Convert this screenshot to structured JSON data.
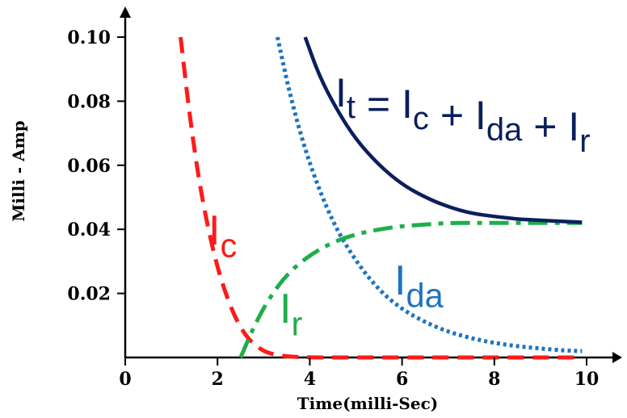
{
  "chart_data": {
    "type": "line",
    "xlabel": "Time(milli-Sec)",
    "ylabel": "Milli - Amp",
    "xlim": [
      0,
      10
    ],
    "ylim": [
      0,
      0.1
    ],
    "x_ticks": [
      "0",
      "2",
      "4",
      "6",
      "8",
      "10"
    ],
    "y_ticks": [
      "0.02",
      "0.04",
      "0.06",
      "0.08",
      "0.10"
    ],
    "grid": false,
    "series": [
      {
        "name": "I_c",
        "color": "#ff1a1a",
        "style": "dashed",
        "x": [
          1.2,
          1.4,
          1.6,
          1.8,
          2.0,
          2.2,
          2.4,
          2.6,
          2.8,
          3.0,
          3.2,
          3.5,
          4.0,
          5.0,
          6.0,
          7.0,
          8.0,
          9.0,
          9.8
        ],
        "y": [
          0.1,
          0.075,
          0.055,
          0.04,
          0.028,
          0.019,
          0.012,
          0.007,
          0.004,
          0.002,
          0.001,
          0.0003,
          0.0,
          0.0,
          0.0,
          0.0,
          0.0,
          0.0,
          0.0
        ]
      },
      {
        "name": "I_da",
        "color": "#1e73be",
        "style": "dotted",
        "x": [
          3.3,
          3.6,
          4.0,
          4.5,
          5.0,
          5.5,
          6.0,
          6.5,
          7.0,
          7.5,
          8.0,
          8.5,
          9.0,
          9.5,
          9.9
        ],
        "y": [
          0.1,
          0.08,
          0.06,
          0.042,
          0.03,
          0.021,
          0.015,
          0.011,
          0.008,
          0.006,
          0.0045,
          0.0035,
          0.0028,
          0.0022,
          0.002
        ]
      },
      {
        "name": "I_r",
        "color": "#1fae4a",
        "style": "dashdot",
        "x": [
          2.5,
          2.8,
          3.1,
          3.5,
          4.0,
          4.5,
          5.0,
          5.5,
          6.0,
          6.5,
          7.0,
          7.5,
          8.0,
          8.5,
          9.0,
          9.5,
          9.9
        ],
        "y": [
          0.0,
          0.01,
          0.018,
          0.026,
          0.032,
          0.036,
          0.0385,
          0.04,
          0.041,
          0.0415,
          0.042,
          0.042,
          0.042,
          0.042,
          0.042,
          0.042,
          0.042
        ]
      },
      {
        "name": "I_t",
        "color": "#0a1f5c",
        "style": "solid",
        "x": [
          3.9,
          4.2,
          4.6,
          5.0,
          5.5,
          6.0,
          6.5,
          7.0,
          7.5,
          8.0,
          8.5,
          9.0,
          9.5,
          9.9
        ],
        "y": [
          0.1,
          0.088,
          0.077,
          0.068,
          0.06,
          0.054,
          0.05,
          0.047,
          0.045,
          0.044,
          0.0432,
          0.0428,
          0.0425,
          0.0422
        ]
      }
    ],
    "annotations": {
      "i_c": {
        "main": "I",
        "sub": "c",
        "color": "#ff1a1a"
      },
      "i_da": {
        "main": "I",
        "sub": "da",
        "color": "#1e73be"
      },
      "i_r": {
        "main": "I",
        "sub": "r",
        "color": "#1fae4a"
      },
      "equation": {
        "color": "#0a1f5c",
        "parts": [
          {
            "main": "I",
            "sub": "t"
          },
          {
            "op": " = "
          },
          {
            "main": "I",
            "sub": "c"
          },
          {
            "op": " + "
          },
          {
            "main": "I",
            "sub": "da"
          },
          {
            "op": " + "
          },
          {
            "main": "I",
            "sub": "r"
          }
        ]
      }
    }
  }
}
